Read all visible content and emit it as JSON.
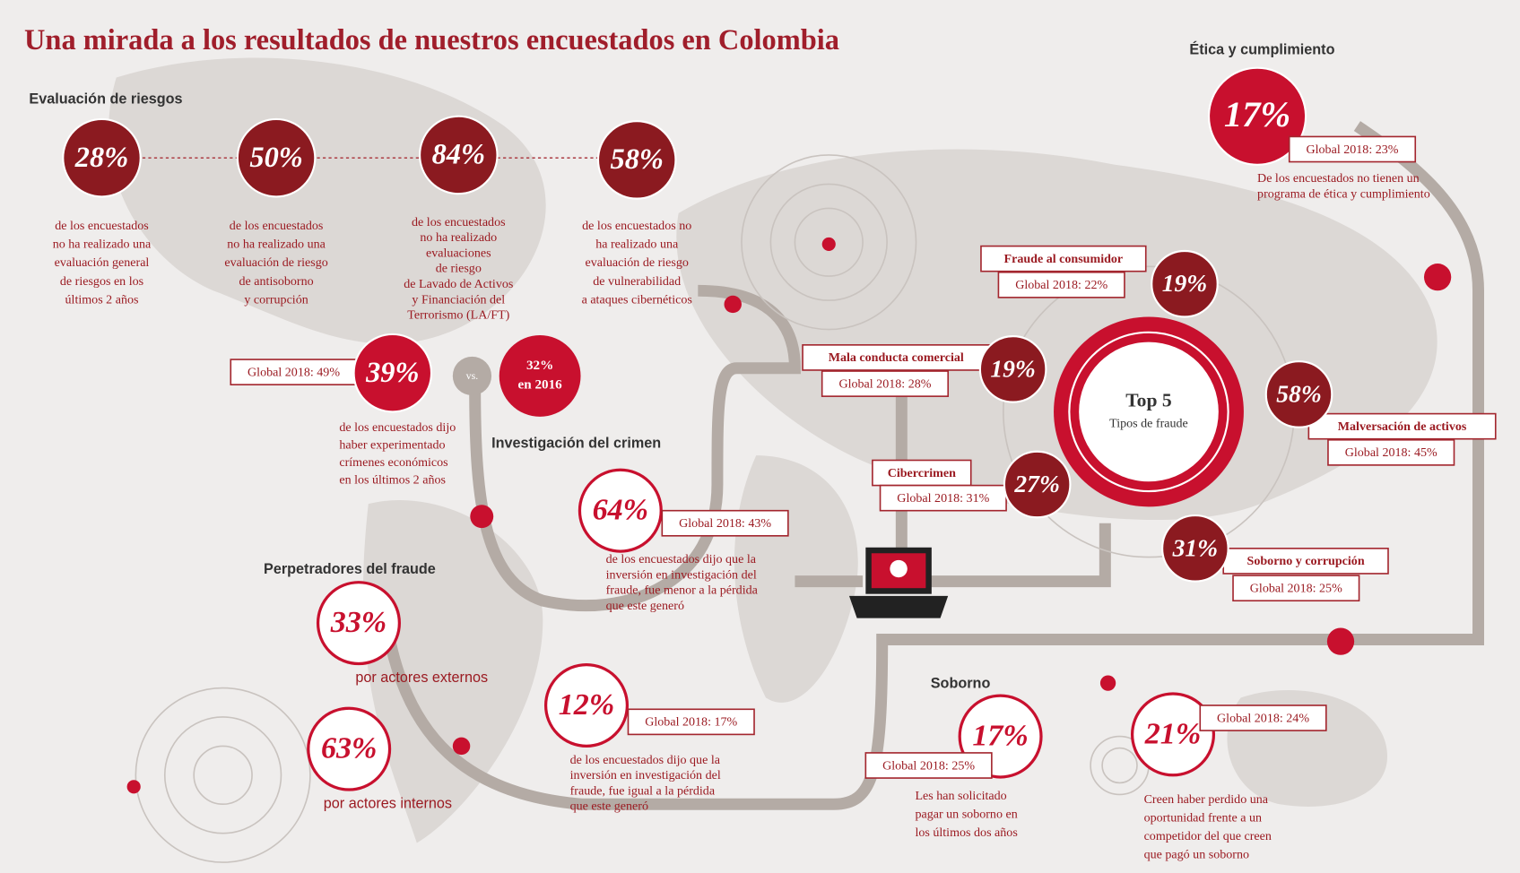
{
  "title": "Una mirada a los resultados de nuestros encuestados en Colombia",
  "risk": {
    "heading": "Evaluación de riesgos",
    "items": [
      {
        "value": "28%",
        "lines": [
          "de los encuestados",
          "no ha realizado una",
          "evaluación general",
          "de riesgos en los",
          "últimos 2 años"
        ]
      },
      {
        "value": "50%",
        "lines": [
          "de los encuestados",
          "no ha realizado una",
          "evaluación de riesgo",
          "de antisoborno",
          "y corrupción"
        ]
      },
      {
        "value": "84%",
        "lines": [
          "de los encuestados",
          "no ha realizado",
          "evaluaciones",
          "de riesgo",
          "de Lavado de Activos",
          "y Financiación del",
          "Terrorismo (LA/FT)"
        ]
      },
      {
        "value": "58%",
        "lines": [
          "de los encuestados no",
          "ha realizado una",
          "evaluación de riesgo",
          "de vulnerabilidad",
          "a ataques cibernéticos"
        ]
      }
    ]
  },
  "crime": {
    "global": "Global 2018: 49%",
    "value": "39%",
    "vs": "vs.",
    "prior": [
      "32%",
      "en 2016"
    ],
    "lines": [
      "de los encuestados dijo",
      "haber experimentado",
      "crímenes económicos",
      "en los últimos 2 años"
    ]
  },
  "investigation": {
    "heading": "Investigación del crimen",
    "items": [
      {
        "value": "64%",
        "global": "Global 2018: 43%",
        "lines": [
          "de los encuestados dijo que la",
          "inversión en investigación del",
          "fraude, fue menor a la pérdida",
          "que este generó"
        ]
      },
      {
        "value": "12%",
        "global": "Global 2018: 17%",
        "lines": [
          "de los encuestados dijo que la",
          "inversión en investigación del",
          "fraude, fue igual a la pérdida",
          "que este generó"
        ]
      }
    ]
  },
  "perpetrators": {
    "heading": "Perpetradores del fraude",
    "items": [
      {
        "value": "33%",
        "label": "por actores externos"
      },
      {
        "value": "63%",
        "label": "por actores internos"
      }
    ]
  },
  "ethics": {
    "heading": "Ética y cumplimiento",
    "value": "17%",
    "global": "Global 2018: 23%",
    "lines": [
      "De los encuestados no tienen un",
      "programa de ética y cumplimiento"
    ]
  },
  "top5": {
    "title": "Top 5",
    "subtitle": "Tipos de fraude",
    "items": [
      {
        "name": "Fraude al consumidor",
        "global": "Global 2018: 22%",
        "value": "19%"
      },
      {
        "name": "Mala conducta comercial",
        "global": "Global 2018: 28%",
        "value": "19%"
      },
      {
        "name": "Cibercrimen",
        "global": "Global 2018: 31%",
        "value": "27%"
      },
      {
        "name": "Malversación de activos",
        "global": "Global 2018: 45%",
        "value": "58%"
      },
      {
        "name": "Soborno y corrupción",
        "global": "Global 2018: 25%",
        "value": "31%"
      }
    ]
  },
  "bribery": {
    "heading": "Soborno",
    "items": [
      {
        "value": "17%",
        "global": "Global 2018: 25%",
        "lines": [
          "Les han solicitado",
          "pagar un soborno en",
          "los últimos dos años"
        ]
      },
      {
        "value": "21%",
        "global": "Global 2018: 24%",
        "lines": [
          "Creen haber perdido una",
          "oportunidad frente a un",
          "competidor del que creen",
          "que pagó un soborno"
        ]
      }
    ]
  }
}
